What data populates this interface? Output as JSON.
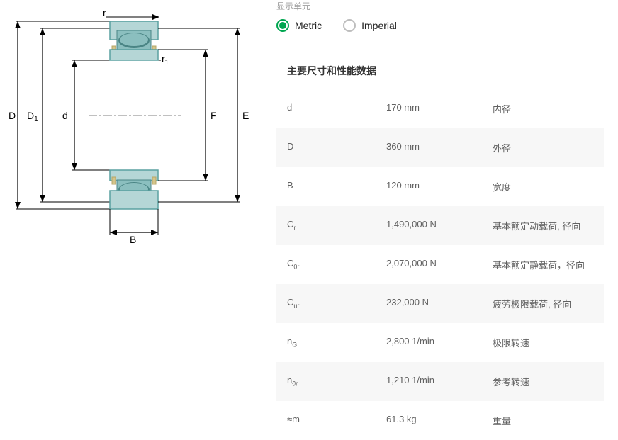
{
  "units": {
    "label": "显示单元",
    "metric": "Metric",
    "imperial": "Imperial",
    "selected": "metric"
  },
  "section_title": "主要尺寸和性能数据",
  "rows": [
    {
      "symbol": "d",
      "sub": "",
      "value": "170 mm",
      "desc": "内径"
    },
    {
      "symbol": "D",
      "sub": "",
      "value": "360 mm",
      "desc": "外径"
    },
    {
      "symbol": "B",
      "sub": "",
      "value": "120 mm",
      "desc": "宽度"
    },
    {
      "symbol": "C",
      "sub": "r",
      "value": "1,490,000 N",
      "desc": "基本额定动载荷, 径向"
    },
    {
      "symbol": "C",
      "sub": "0r",
      "value": "2,070,000 N",
      "desc": "基本额定静载荷，径向"
    },
    {
      "symbol": "C",
      "sub": "ur",
      "value": "232,000 N",
      "desc": "疲劳极限载荷, 径向"
    },
    {
      "symbol": "n",
      "sub": "G",
      "value": "2,800 1/min",
      "desc": "极限转速"
    },
    {
      "symbol": "n",
      "sub": "ϑr",
      "value": "1,210 1/min",
      "desc": "参考转速"
    },
    {
      "symbol": "≈m",
      "sub": "",
      "value": "61.3 kg",
      "desc": "重量"
    }
  ],
  "diagram": {
    "labels": {
      "D": "D",
      "D1": "D₁",
      "d": "d",
      "F": "F",
      "E": "E",
      "B": "B",
      "r": "r",
      "r1": "r₁"
    },
    "colors": {
      "outline": "#000000",
      "body_fill": "#b5d6d6",
      "body_stroke": "#5aa0a0",
      "roller_fill": "#8bbfbf",
      "roller_dark": "#4a8585",
      "cage": "#d4c48a",
      "centerline": "#808080"
    }
  }
}
